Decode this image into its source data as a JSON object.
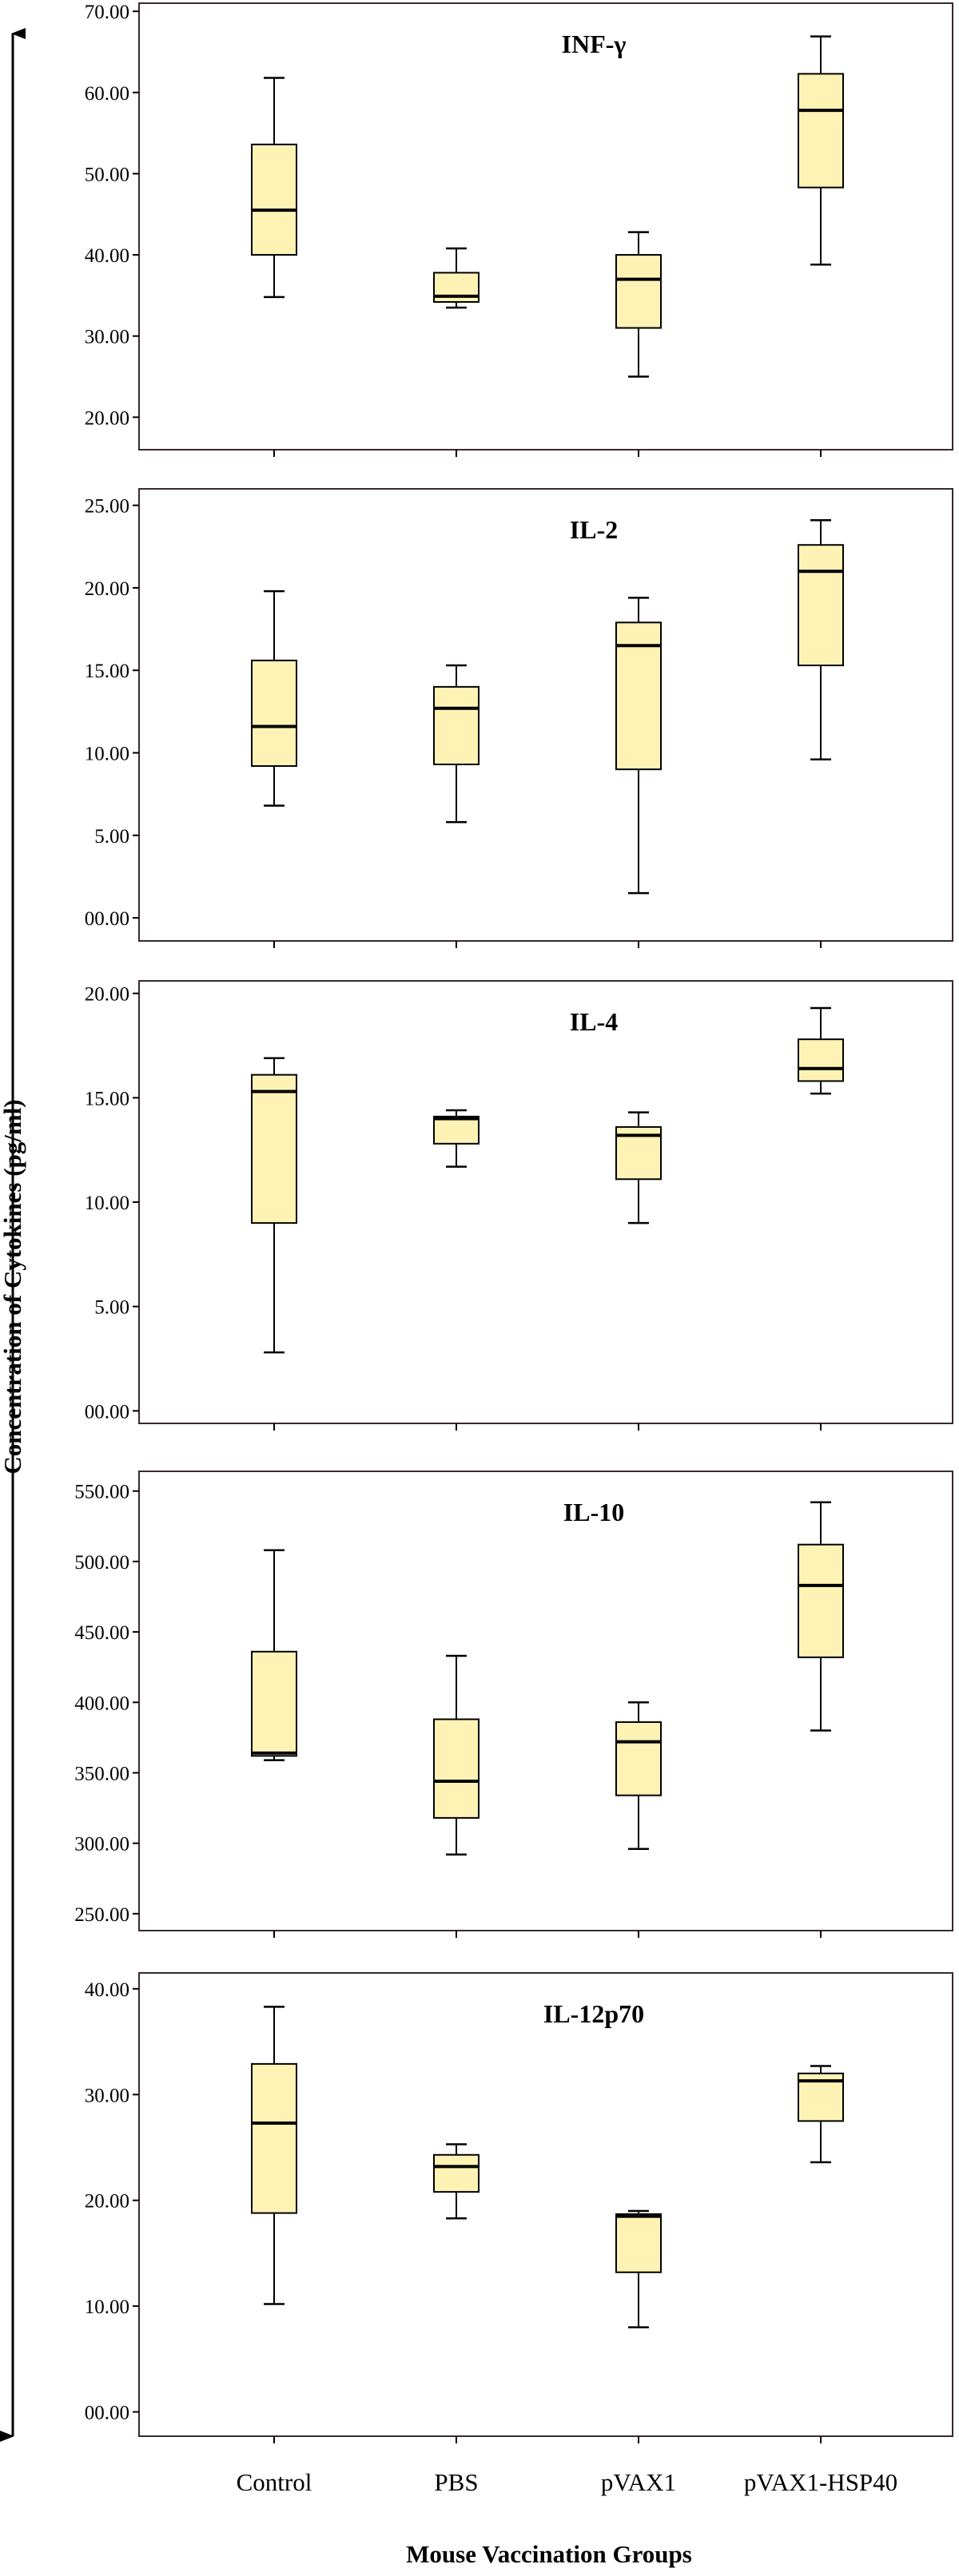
{
  "chart_data": [
    {
      "type": "boxplot",
      "title": "INF-γ",
      "categories": [
        "Control",
        "PBS",
        "pVAX1",
        "pVAX1-HSP40"
      ],
      "ylim": [
        16,
        71
      ],
      "yticks": [
        "20.00",
        "30.00",
        "40.00",
        "50.00",
        "60.00",
        "70.00"
      ],
      "boxes": [
        {
          "min": 34.8,
          "q1": 40.0,
          "median": 45.5,
          "q3": 53.6,
          "max": 61.8
        },
        {
          "min": 33.5,
          "q1": 34.2,
          "median": 34.9,
          "q3": 37.8,
          "max": 40.8
        },
        {
          "min": 25.0,
          "q1": 31.0,
          "median": 37.0,
          "q3": 40.0,
          "max": 42.8
        },
        {
          "min": 38.8,
          "q1": 48.3,
          "median": 57.8,
          "q3": 62.3,
          "max": 66.9
        }
      ]
    },
    {
      "type": "boxplot",
      "title": "IL-2",
      "categories": [
        "Control",
        "PBS",
        "pVAX1",
        "pVAX1-HSP40"
      ],
      "ylim": [
        -1.4,
        26
      ],
      "yticks": [
        "00.00",
        "5.00",
        "10.00",
        "15.00",
        "20.00",
        "25.00"
      ],
      "boxes": [
        {
          "min": 6.8,
          "q1": 9.2,
          "median": 11.6,
          "q3": 15.6,
          "max": 19.8
        },
        {
          "min": 5.8,
          "q1": 9.3,
          "median": 12.7,
          "q3": 14.0,
          "max": 15.3
        },
        {
          "min": 1.5,
          "q1": 9.0,
          "median": 16.5,
          "q3": 17.9,
          "max": 19.4
        },
        {
          "min": 9.6,
          "q1": 15.3,
          "median": 21.0,
          "q3": 22.6,
          "max": 24.1
        }
      ]
    },
    {
      "type": "boxplot",
      "title": "IL-4",
      "categories": [
        "Control",
        "PBS",
        "pVAX1",
        "pVAX1-HSP40"
      ],
      "ylim": [
        -0.6,
        20.6
      ],
      "yticks": [
        "00.00",
        "5.00",
        "10.00",
        "15.00",
        "20.00"
      ],
      "boxes": [
        {
          "min": 2.8,
          "q1": 9.0,
          "median": 15.3,
          "q3": 16.1,
          "max": 16.9
        },
        {
          "min": 11.7,
          "q1": 12.8,
          "median": 14.0,
          "q3": 14.1,
          "max": 14.4
        },
        {
          "min": 9.0,
          "q1": 11.1,
          "median": 13.2,
          "q3": 13.6,
          "max": 14.3
        },
        {
          "min": 15.2,
          "q1": 15.8,
          "median": 16.4,
          "q3": 17.8,
          "max": 19.3
        }
      ]
    },
    {
      "type": "boxplot",
      "title": "IL-10",
      "categories": [
        "Control",
        "PBS",
        "pVAX1",
        "pVAX1-HSP40"
      ],
      "ylim": [
        238,
        564
      ],
      "yticks": [
        "250.00",
        "300.00",
        "350.00",
        "400.00",
        "450.00",
        "500.00",
        "550.00"
      ],
      "boxes": [
        {
          "min": 359,
          "q1": 362,
          "median": 364,
          "q3": 436,
          "max": 508
        },
        {
          "min": 292,
          "q1": 318,
          "median": 344,
          "q3": 388,
          "max": 433
        },
        {
          "min": 296,
          "q1": 334,
          "median": 372,
          "q3": 386,
          "max": 400
        },
        {
          "min": 380,
          "q1": 432,
          "median": 483,
          "q3": 512,
          "max": 542
        }
      ]
    },
    {
      "type": "boxplot",
      "title": "IL-12p70",
      "categories": [
        "Control",
        "PBS",
        "pVAX1",
        "pVAX1-HSP40"
      ],
      "ylim": [
        -2.3,
        41.5
      ],
      "yticks": [
        "00.00",
        "10.00",
        "20.00",
        "30.00",
        "40.00"
      ],
      "boxes": [
        {
          "min": 10.2,
          "q1": 18.8,
          "median": 27.3,
          "q3": 32.9,
          "max": 38.3
        },
        {
          "min": 18.3,
          "q1": 20.8,
          "median": 23.2,
          "q3": 24.3,
          "max": 25.3
        },
        {
          "min": 8.0,
          "q1": 13.2,
          "median": 18.5,
          "q3": 18.7,
          "max": 19.0
        },
        {
          "min": 23.6,
          "q1": 27.5,
          "median": 31.3,
          "q3": 32.0,
          "max": 32.7
        }
      ]
    }
  ],
  "xlabel": "Mouse Vaccination Groups",
  "ylabel": "Concentration of Cytokines (pg/ml)",
  "colors": {
    "box_fill": "#fef3b4",
    "box_stroke": "#000000",
    "frame": "#3a2a2a"
  }
}
